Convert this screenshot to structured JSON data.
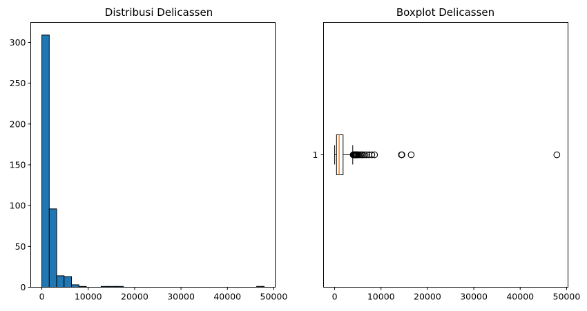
{
  "chart_data": [
    {
      "type": "bar",
      "title": "Distribusi Delicassen",
      "xlabel": "",
      "ylabel": "",
      "bar_color": "#1f77b4",
      "bin_edges": [
        3,
        1600,
        3197,
        4794,
        6391,
        7988,
        9585,
        11182,
        12779,
        14376,
        15973,
        17570,
        19167,
        20764,
        22361,
        23958,
        25555,
        27152,
        28749,
        30346,
        31943,
        33540,
        35137,
        36734,
        38331,
        39928,
        41525,
        43122,
        44719,
        46316,
        47913
      ],
      "counts": [
        309,
        96,
        14,
        13,
        3,
        1,
        0,
        0,
        1,
        1,
        1,
        0,
        0,
        0,
        0,
        0,
        0,
        0,
        0,
        0,
        0,
        0,
        0,
        0,
        0,
        0,
        0,
        0,
        0,
        1
      ],
      "xlim": [
        -2393,
        50309
      ],
      "ylim": [
        0,
        324.5
      ],
      "xticks": [
        0,
        10000,
        20000,
        30000,
        40000,
        50000
      ],
      "yticks": [
        0,
        50,
        100,
        150,
        200,
        250,
        300
      ],
      "grid": false
    },
    {
      "type": "boxplot",
      "title": "Boxplot Delicassen",
      "orientation": "horizontal",
      "category_label": "1",
      "q1": 408,
      "median": 966,
      "q3": 1820,
      "whisker_low": 3,
      "whisker_high": 3900,
      "median_color": "#ff7f0e",
      "outliers": [
        4000,
        4100,
        4200,
        4300,
        4400,
        4500,
        4600,
        4700,
        4800,
        5000,
        5200,
        5500,
        5800,
        6100,
        6500,
        6900,
        7400,
        8000,
        8600,
        14400,
        14500,
        16500,
        47900
      ],
      "xlim": [
        -2393,
        50309
      ],
      "ylim": [
        0.5,
        1.5
      ],
      "xticks": [
        0,
        10000,
        20000,
        30000,
        40000,
        50000
      ],
      "grid": false
    }
  ]
}
